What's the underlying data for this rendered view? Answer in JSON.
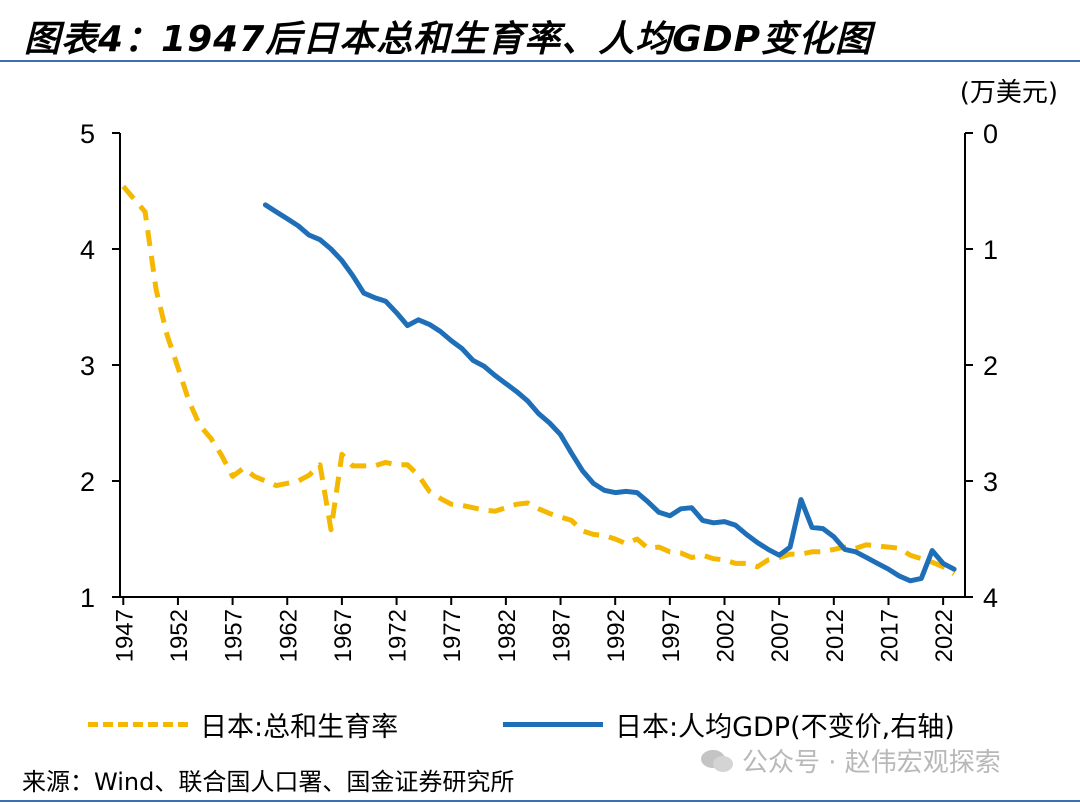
{
  "title": "图表4：1947后日本总和生育率、人均GDP变化图",
  "unit_right": "(万美元)",
  "source": "来源：Wind、联合国人口署、国金证券研究所",
  "watermark": "公众号 · 赵伟宏观探索",
  "colors": {
    "tfr": "#F5B800",
    "gdp": "#1F6FB8",
    "rule": "#3a6fb0"
  },
  "chart_data": {
    "type": "line",
    "title": "1947后日本总和生育率、人均GDP变化图",
    "x_ticks": [
      "1947",
      "1952",
      "1957",
      "1962",
      "1967",
      "1972",
      "1977",
      "1982",
      "1987",
      "1992",
      "1997",
      "2002",
      "2007",
      "2012",
      "2017",
      "2022"
    ],
    "xlim": [
      1947,
      2023
    ],
    "left_axis": {
      "ylim": [
        1,
        5
      ],
      "ticks": [
        "1",
        "2",
        "3",
        "4",
        "5"
      ]
    },
    "right_axis": {
      "ylim": [
        4,
        0
      ],
      "inverted": true,
      "ticks": [
        "0",
        "1",
        "2",
        "3",
        "4"
      ],
      "unit": "万美元"
    },
    "series": [
      {
        "name": "日本:总和生育率",
        "axis": "left",
        "style": "dashed",
        "x": [
          1947,
          1949,
          1950,
          1951,
          1952,
          1953,
          1954,
          1955,
          1956,
          1957,
          1958,
          1959,
          1960,
          1961,
          1962,
          1963,
          1964,
          1965,
          1966,
          1967,
          1968,
          1969,
          1970,
          1971,
          1972,
          1973,
          1974,
          1975,
          1976,
          1977,
          1978,
          1979,
          1980,
          1981,
          1982,
          1983,
          1984,
          1985,
          1986,
          1987,
          1988,
          1989,
          1990,
          1991,
          1992,
          1993,
          1994,
          1995,
          1996,
          1997,
          1998,
          1999,
          2000,
          2001,
          2002,
          2003,
          2004,
          2005,
          2006,
          2007,
          2008,
          2009,
          2010,
          2011,
          2012,
          2013,
          2014,
          2015,
          2016,
          2017,
          2018,
          2019,
          2020,
          2021,
          2022,
          2023
        ],
        "values": [
          4.54,
          4.32,
          3.65,
          3.26,
          2.98,
          2.69,
          2.48,
          2.37,
          2.22,
          2.04,
          2.11,
          2.04,
          2.0,
          1.96,
          1.98,
          2.0,
          2.05,
          2.14,
          1.58,
          2.23,
          2.13,
          2.13,
          2.13,
          2.16,
          2.14,
          2.14,
          2.05,
          1.91,
          1.85,
          1.8,
          1.79,
          1.77,
          1.75,
          1.74,
          1.77,
          1.8,
          1.81,
          1.76,
          1.72,
          1.69,
          1.66,
          1.57,
          1.54,
          1.53,
          1.5,
          1.46,
          1.5,
          1.42,
          1.43,
          1.39,
          1.38,
          1.34,
          1.36,
          1.33,
          1.32,
          1.29,
          1.29,
          1.26,
          1.32,
          1.34,
          1.37,
          1.37,
          1.39,
          1.39,
          1.41,
          1.43,
          1.42,
          1.45,
          1.44,
          1.43,
          1.42,
          1.36,
          1.33,
          1.3,
          1.26,
          1.2
        ]
      },
      {
        "name": "日本:人均GDP(不变价,右轴)",
        "axis": "right",
        "style": "solid",
        "x": [
          1960,
          1961,
          1962,
          1963,
          1964,
          1965,
          1966,
          1967,
          1968,
          1969,
          1970,
          1971,
          1972,
          1973,
          1974,
          1975,
          1976,
          1977,
          1978,
          1979,
          1980,
          1981,
          1982,
          1983,
          1984,
          1985,
          1986,
          1987,
          1988,
          1989,
          1990,
          1991,
          1992,
          1993,
          1994,
          1995,
          1996,
          1997,
          1998,
          1999,
          2000,
          2001,
          2002,
          2003,
          2004,
          2005,
          2006,
          2007,
          2008,
          2009,
          2010,
          2011,
          2012,
          2013,
          2014,
          2015,
          2016,
          2017,
          2018,
          2019,
          2020,
          2021,
          2022,
          2023
        ],
        "values": [
          0.62,
          0.68,
          0.74,
          0.8,
          0.88,
          0.92,
          1.0,
          1.1,
          1.23,
          1.38,
          1.42,
          1.45,
          1.55,
          1.66,
          1.61,
          1.65,
          1.71,
          1.79,
          1.86,
          1.96,
          2.01,
          2.09,
          2.16,
          2.23,
          2.31,
          2.42,
          2.5,
          2.6,
          2.76,
          2.91,
          3.02,
          3.08,
          3.1,
          3.09,
          3.1,
          3.18,
          3.27,
          3.3,
          3.24,
          3.23,
          3.34,
          3.36,
          3.35,
          3.38,
          3.46,
          3.53,
          3.59,
          3.64,
          3.57,
          3.16,
          3.4,
          3.41,
          3.48,
          3.59,
          3.61,
          3.66,
          3.71,
          3.76,
          3.82,
          3.86,
          3.84,
          3.6,
          3.71,
          3.76
        ]
      }
    ]
  }
}
